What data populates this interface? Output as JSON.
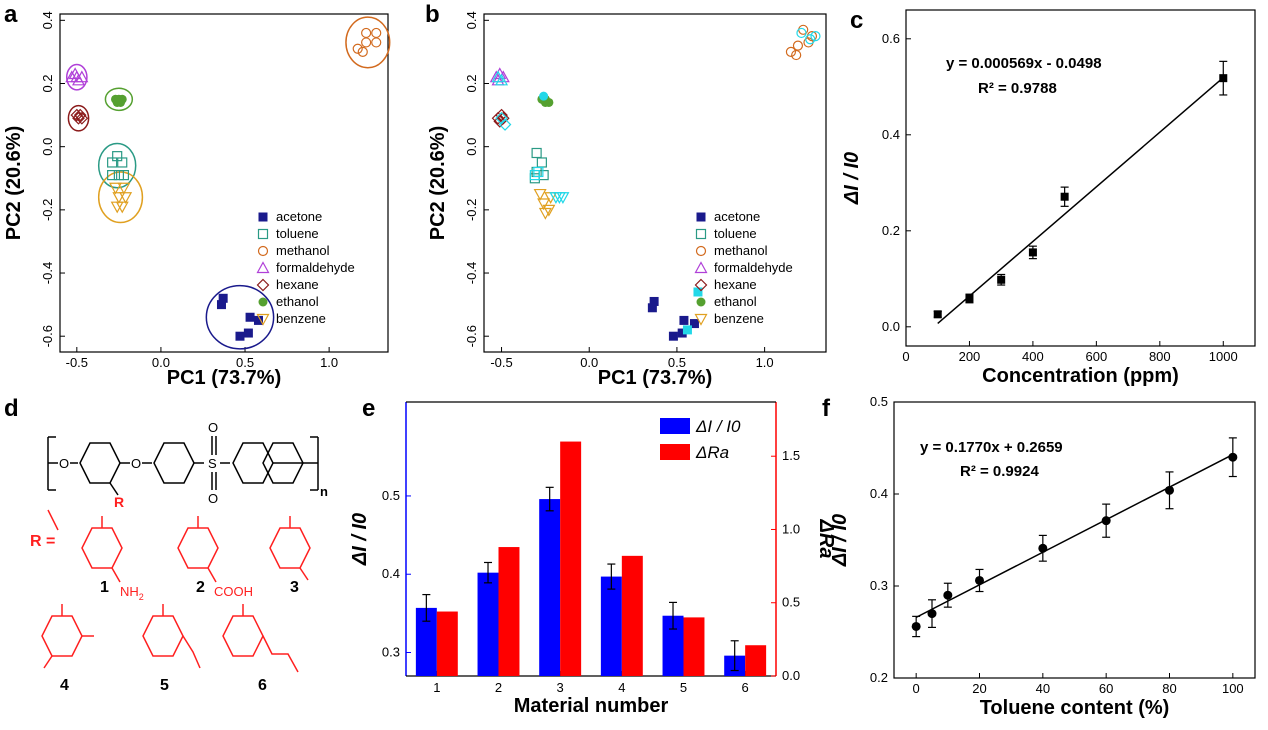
{
  "panels": {
    "a": "a",
    "b": "b",
    "c": "c",
    "d": "d",
    "e": "e",
    "f": "f"
  },
  "colors": {
    "acetone": "#1a1a8c",
    "toluene": "#2a9a85",
    "methanol": "#d26a1e",
    "formaldehyde": "#b040d8",
    "hexane": "#8b1a1a",
    "ethanol": "#55a030",
    "benzene": "#e0a020",
    "cyan": "#22d8e8",
    "bar_blue": "#0000ff",
    "bar_red": "#ff0000",
    "chem_red": "#ff2020"
  },
  "legend_labels": [
    "acetone",
    "toluene",
    "methanol",
    "formaldehyde",
    "hexane",
    "ethanol",
    "benzene"
  ],
  "chart_data": [
    {
      "id": "a",
      "type": "scatter",
      "xlabel": "PC1 (73.7%)",
      "ylabel": "PC2 (20.6%)",
      "xlim": [
        -0.6,
        1.35
      ],
      "ylim": [
        -0.65,
        0.42
      ],
      "xticks": [
        "-0.5",
        "0.0",
        "0.5",
        "1.0"
      ],
      "xtick_vals": [
        -0.5,
        0,
        0.5,
        1.0
      ],
      "yticks": [
        "-0.6",
        "-0.4",
        "-0.2",
        "0.0",
        "0.2",
        "0.4"
      ],
      "ytick_vals": [
        -0.6,
        -0.4,
        -0.2,
        0,
        0.2,
        0.4
      ],
      "series": [
        {
          "name": "acetone",
          "marker": "filled-square",
          "points": [
            [
              0.37,
              -0.48
            ],
            [
              0.36,
              -0.5
            ],
            [
              0.53,
              -0.54
            ],
            [
              0.58,
              -0.55
            ],
            [
              0.52,
              -0.59
            ],
            [
              0.47,
              -0.6
            ]
          ]
        },
        {
          "name": "toluene",
          "marker": "open-square",
          "points": [
            [
              -0.26,
              -0.03
            ],
            [
              -0.23,
              -0.05
            ],
            [
              -0.29,
              -0.05
            ],
            [
              -0.25,
              -0.09
            ],
            [
              -0.29,
              -0.09
            ],
            [
              -0.22,
              -0.09
            ]
          ]
        },
        {
          "name": "methanol",
          "marker": "open-circle",
          "points": [
            [
              1.22,
              0.36
            ],
            [
              1.28,
              0.36
            ],
            [
              1.22,
              0.33
            ],
            [
              1.28,
              0.33
            ],
            [
              1.17,
              0.31
            ],
            [
              1.2,
              0.3
            ]
          ]
        },
        {
          "name": "formaldehyde",
          "marker": "open-triangle",
          "points": [
            [
              -0.53,
              0.22
            ],
            [
              -0.5,
              0.22
            ],
            [
              -0.47,
              0.22
            ],
            [
              -0.51,
              0.23
            ],
            [
              -0.49,
              0.21
            ]
          ]
        },
        {
          "name": "hexane",
          "marker": "open-diamond",
          "points": [
            [
              -0.5,
              0.1
            ],
            [
              -0.48,
              0.1
            ],
            [
              -0.49,
              0.09
            ],
            [
              -0.47,
              0.09
            ]
          ]
        },
        {
          "name": "ethanol",
          "marker": "filled-circle",
          "points": [
            [
              -0.27,
              0.15
            ],
            [
              -0.25,
              0.15
            ],
            [
              -0.23,
              0.15
            ],
            [
              -0.24,
              0.14
            ],
            [
              -0.26,
              0.14
            ]
          ]
        },
        {
          "name": "benzene",
          "marker": "open-down-triangle",
          "points": [
            [
              -0.27,
              -0.13
            ],
            [
              -0.22,
              -0.13
            ],
            [
              -0.25,
              -0.16
            ],
            [
              -0.21,
              -0.16
            ],
            [
              -0.26,
              -0.19
            ],
            [
              -0.23,
              -0.19
            ]
          ]
        }
      ],
      "ellipses": [
        {
          "name": "acetone",
          "cx": 0.47,
          "cy": -0.54,
          "rx": 0.2,
          "ry": 0.1
        },
        {
          "name": "toluene",
          "cx": -0.26,
          "cy": -0.06,
          "rx": 0.11,
          "ry": 0.07
        },
        {
          "name": "methanol",
          "cx": 1.23,
          "cy": 0.33,
          "rx": 0.13,
          "ry": 0.08
        },
        {
          "name": "formaldehyde",
          "cx": -0.5,
          "cy": 0.22,
          "rx": 0.06,
          "ry": 0.04
        },
        {
          "name": "hexane",
          "cx": -0.49,
          "cy": 0.09,
          "rx": 0.06,
          "ry": 0.04
        },
        {
          "name": "ethanol",
          "cx": -0.25,
          "cy": 0.15,
          "rx": 0.08,
          "ry": 0.035
        },
        {
          "name": "benzene",
          "cx": -0.24,
          "cy": -0.16,
          "rx": 0.13,
          "ry": 0.08
        }
      ]
    },
    {
      "id": "b",
      "type": "scatter",
      "xlabel": "PC1 (73.7%)",
      "ylabel": "PC2 (20.6%)",
      "xlim": [
        -0.6,
        1.35
      ],
      "ylim": [
        -0.65,
        0.42
      ],
      "xticks": [
        "-0.5",
        "0.0",
        "0.5",
        "1.0"
      ],
      "xtick_vals": [
        -0.5,
        0,
        0.5,
        1.0
      ],
      "yticks": [
        "-0.6",
        "-0.4",
        "-0.2",
        "0.0",
        "0.2",
        "0.4"
      ],
      "ytick_vals": [
        -0.6,
        -0.4,
        -0.2,
        0,
        0.2,
        0.4
      ],
      "series": [
        {
          "name": "acetone",
          "marker": "filled-square",
          "points": [
            [
              0.37,
              -0.49
            ],
            [
              0.36,
              -0.51
            ],
            [
              0.54,
              -0.55
            ],
            [
              0.6,
              -0.56
            ],
            [
              0.53,
              -0.59
            ],
            [
              0.48,
              -0.6
            ]
          ]
        },
        {
          "name": "toluene",
          "marker": "open-square",
          "points": [
            [
              -0.3,
              -0.02
            ],
            [
              -0.27,
              -0.05
            ],
            [
              -0.3,
              -0.08
            ],
            [
              -0.26,
              -0.09
            ],
            [
              -0.31,
              -0.1
            ]
          ]
        },
        {
          "name": "methanol",
          "marker": "open-circle",
          "points": [
            [
              1.22,
              0.37
            ],
            [
              1.27,
              0.35
            ],
            [
              1.19,
              0.32
            ],
            [
              1.25,
              0.33
            ],
            [
              1.15,
              0.3
            ],
            [
              1.18,
              0.29
            ]
          ]
        },
        {
          "name": "formaldehyde",
          "marker": "open-triangle",
          "points": [
            [
              -0.53,
              0.22
            ],
            [
              -0.51,
              0.23
            ],
            [
              -0.49,
              0.22
            ],
            [
              -0.52,
              0.21
            ]
          ]
        },
        {
          "name": "hexane",
          "marker": "open-diamond",
          "points": [
            [
              -0.52,
              0.09
            ],
            [
              -0.5,
              0.1
            ],
            [
              -0.51,
              0.08
            ],
            [
              -0.49,
              0.09
            ]
          ]
        },
        {
          "name": "ethanol",
          "marker": "filled-circle",
          "points": [
            [
              -0.27,
              0.15
            ],
            [
              -0.25,
              0.15
            ],
            [
              -0.23,
              0.14
            ],
            [
              -0.25,
              0.14
            ]
          ]
        },
        {
          "name": "benzene",
          "marker": "open-down-triangle",
          "points": [
            [
              -0.28,
              -0.15
            ],
            [
              -0.26,
              -0.18
            ],
            [
              -0.25,
              -0.21
            ],
            [
              -0.23,
              -0.2
            ],
            [
              -0.22,
              -0.16
            ]
          ]
        }
      ],
      "cyan_points": [
        {
          "marker": "open-diamond",
          "points": [
            [
              -0.48,
              0.07
            ],
            [
              -0.5,
              0.09
            ]
          ]
        },
        {
          "marker": "open-circle",
          "points": [
            [
              1.21,
              0.36
            ],
            [
              1.26,
              0.34
            ],
            [
              1.29,
              0.35
            ]
          ]
        },
        {
          "marker": "open-triangle",
          "points": [
            [
              -0.52,
              0.22
            ],
            [
              -0.5,
              0.21
            ]
          ]
        },
        {
          "marker": "filled-circle",
          "points": [
            [
              -0.26,
              0.16
            ]
          ]
        },
        {
          "marker": "open-square",
          "points": [
            [
              -0.29,
              -0.08
            ],
            [
              -0.31,
              -0.09
            ]
          ]
        },
        {
          "marker": "open-down-triangle",
          "points": [
            [
              -0.17,
              -0.16
            ],
            [
              -0.19,
              -0.16
            ],
            [
              -0.15,
              -0.16
            ]
          ]
        },
        {
          "marker": "filled-square",
          "points": [
            [
              0.62,
              -0.46
            ],
            [
              0.56,
              -0.58
            ]
          ]
        }
      ]
    },
    {
      "id": "c",
      "type": "scatter",
      "xlabel": "Concentration (ppm)",
      "ylabel": "ΔI / I0",
      "xlim": [
        0,
        1100
      ],
      "ylim": [
        -0.04,
        0.66
      ],
      "xticks": [
        "0",
        "200",
        "400",
        "600",
        "800",
        "1000"
      ],
      "xtick_vals": [
        0,
        200,
        400,
        600,
        800,
        1000
      ],
      "yticks": [
        "0.0",
        "0.2",
        "0.4",
        "0.6"
      ],
      "ytick_vals": [
        0,
        0.2,
        0.4,
        0.6
      ],
      "x": [
        100,
        200,
        300,
        400,
        500,
        1000
      ],
      "y": [
        0.026,
        0.059,
        0.098,
        0.155,
        0.271,
        0.518
      ],
      "err": [
        0.006,
        0.009,
        0.011,
        0.013,
        0.02,
        0.035
      ],
      "fit": {
        "slope": 0.000569,
        "intercept": -0.0498,
        "x_range": [
          100,
          1000
        ]
      },
      "equation": "y = 0.000569x - 0.0498",
      "r2": "R² = 0.9788"
    },
    {
      "id": "e",
      "type": "bar",
      "xlabel": "Material number",
      "ylabel_left": "ΔI / I0",
      "ylabel_right": "ΔRa",
      "categories": [
        "1",
        "2",
        "3",
        "4",
        "5",
        "6"
      ],
      "series": [
        {
          "name": "ΔI / I0",
          "axis": "left",
          "values": [
            0.357,
            0.402,
            0.496,
            0.397,
            0.347,
            0.296
          ],
          "err": [
            0.017,
            0.013,
            0.015,
            0.016,
            0.017,
            0.019
          ]
        },
        {
          "name": "ΔRa",
          "axis": "right",
          "values": [
            0.44,
            0.88,
            1.6,
            0.82,
            0.4,
            0.21
          ]
        }
      ],
      "ylim_left": [
        0.27,
        0.62
      ],
      "ylim_right": [
        0,
        1.87
      ],
      "yticks_left": [
        "0.3",
        "0.4",
        "0.5"
      ],
      "ytick_vals_left": [
        0.3,
        0.4,
        0.5
      ],
      "yticks_right": [
        "0.0",
        "0.5",
        "1.0",
        "1.5"
      ],
      "ytick_vals_right": [
        0,
        0.5,
        1.0,
        1.5
      ],
      "legend": {
        "item1": "ΔI / I0",
        "item2": "ΔRa"
      }
    },
    {
      "id": "f",
      "type": "scatter",
      "xlabel": "Toluene content (%)",
      "ylabel": "ΔI / I0",
      "xlim": [
        -7,
        107
      ],
      "ylim": [
        0.2,
        0.5
      ],
      "xticks": [
        "0",
        "20",
        "40",
        "60",
        "80",
        "100"
      ],
      "xtick_vals": [
        0,
        20,
        40,
        60,
        80,
        100
      ],
      "yticks": [
        "0.2",
        "0.3",
        "0.4",
        "0.5"
      ],
      "ytick_vals": [
        0.2,
        0.3,
        0.4,
        0.5
      ],
      "x": [
        0,
        5,
        10,
        20,
        40,
        60,
        80,
        100
      ],
      "y": [
        0.256,
        0.27,
        0.29,
        0.306,
        0.341,
        0.371,
        0.404,
        0.44
      ],
      "err": [
        0.011,
        0.015,
        0.013,
        0.012,
        0.014,
        0.018,
        0.02,
        0.021
      ],
      "fit": {
        "slope": 0.177,
        "intercept": 0.2659,
        "x_range": [
          0,
          100
        ],
        "scale": 0.01
      },
      "equation": "y = 0.1770x + 0.2659",
      "r2": "R² = 0.9924"
    }
  ],
  "chemistry": {
    "R_label": "R",
    "R_eq": "R =",
    "n_label": "n",
    "O": "O",
    "S": "S",
    "NH2": "NH",
    "NH2_sub": "2",
    "COOH": "COOH",
    "numbers": [
      "1",
      "2",
      "3",
      "4",
      "5",
      "6"
    ]
  }
}
